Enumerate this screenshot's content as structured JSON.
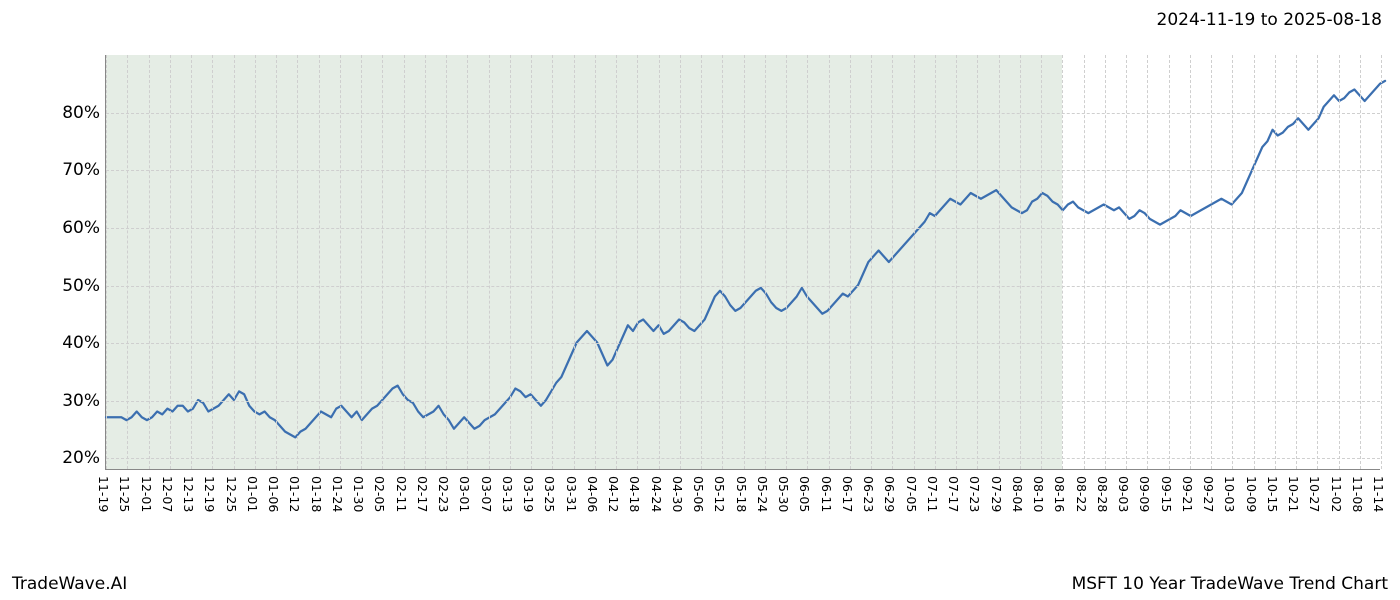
{
  "header": {
    "date_range": "2024-11-19 to 2025-08-18"
  },
  "footer": {
    "left": "TradeWave.AI",
    "right": "MSFT 10 Year TradeWave Trend Chart"
  },
  "chart": {
    "type": "line",
    "background_color": "#ffffff",
    "line_color": "#3b6fb0",
    "line_width": 2.2,
    "grid_color": "#cfcfcf",
    "shade_color": "rgba(150,185,150,0.25)",
    "axis_color": "#888888",
    "ylim": [
      18,
      90
    ],
    "yticks": [
      20,
      30,
      40,
      50,
      60,
      70,
      80
    ],
    "ytick_labels": [
      "20%",
      "30%",
      "40%",
      "50%",
      "60%",
      "70%",
      "80%"
    ],
    "ytick_fontsize": 17,
    "xtick_fontsize": 12.5,
    "xtick_rotation": 90,
    "shade_start": "11-19",
    "shade_end": "08-18",
    "n_points": 250,
    "xticks": [
      "11-19",
      "11-25",
      "12-01",
      "12-07",
      "12-13",
      "12-19",
      "12-25",
      "01-01",
      "01-06",
      "01-12",
      "01-18",
      "01-24",
      "01-30",
      "02-05",
      "02-11",
      "02-17",
      "02-23",
      "03-01",
      "03-07",
      "03-13",
      "03-19",
      "03-25",
      "03-31",
      "04-06",
      "04-12",
      "04-18",
      "04-24",
      "04-30",
      "05-06",
      "05-12",
      "05-18",
      "05-24",
      "05-30",
      "06-05",
      "06-11",
      "06-17",
      "06-23",
      "06-29",
      "07-05",
      "07-11",
      "07-17",
      "07-23",
      "07-29",
      "08-04",
      "08-10",
      "08-16",
      "08-22",
      "08-28",
      "09-03",
      "09-09",
      "09-15",
      "09-21",
      "09-27",
      "10-03",
      "10-09",
      "10-15",
      "10-21",
      "10-27",
      "11-02",
      "11-08",
      "11-14"
    ],
    "values": [
      27,
      27,
      27,
      27,
      26.5,
      27,
      28,
      27,
      26.5,
      27,
      28,
      27.5,
      28.5,
      28,
      29,
      29,
      28,
      28.5,
      30,
      29.5,
      28,
      28.5,
      29,
      30,
      31,
      30,
      31.5,
      31,
      29,
      28,
      27.5,
      28,
      27,
      26.5,
      25.5,
      24.5,
      24,
      23.5,
      24.5,
      25,
      26,
      27,
      28,
      27.5,
      27,
      28.5,
      29,
      28,
      27,
      28,
      26.5,
      27.5,
      28.5,
      29,
      30,
      31,
      32,
      32.5,
      31,
      30,
      29.5,
      28,
      27,
      27.5,
      28,
      29,
      27.5,
      26.5,
      25,
      26,
      27,
      26,
      25,
      25.5,
      26.5,
      27,
      27.5,
      28.5,
      29.5,
      30.5,
      32,
      31.5,
      30.5,
      31,
      30,
      29,
      30,
      31.5,
      33,
      34,
      36,
      38,
      40,
      41,
      42,
      41,
      40,
      38,
      36,
      37,
      39,
      41,
      43,
      42,
      43.5,
      44,
      43,
      42,
      43,
      41.5,
      42,
      43,
      44,
      43.5,
      42.5,
      42,
      43,
      44,
      46,
      48,
      49,
      48,
      46.5,
      45.5,
      46,
      47,
      48,
      49,
      49.5,
      48.5,
      47,
      46,
      45.5,
      46,
      47,
      48,
      49.5,
      48,
      47,
      46,
      45,
      45.5,
      46.5,
      47.5,
      48.5,
      48,
      49,
      50,
      52,
      54,
      55,
      56,
      55,
      54,
      55,
      56,
      57,
      58,
      59,
      60,
      61,
      62.5,
      62,
      63,
      64,
      65,
      64.5,
      64,
      65,
      66,
      65.5,
      65,
      65.5,
      66,
      66.5,
      65.5,
      64.5,
      63.5,
      63,
      62.5,
      63,
      64.5,
      65,
      66,
      65.5,
      64.5,
      64,
      63,
      64,
      64.5,
      63.5,
      63,
      62.5,
      63,
      63.5,
      64,
      63.5,
      63,
      63.5,
      62.5,
      61.5,
      62,
      63,
      62.5,
      61.5,
      61,
      60.5,
      61,
      61.5,
      62,
      63,
      62.5,
      62,
      62.5,
      63,
      63.5,
      64,
      64.5,
      65,
      64.5,
      64,
      65,
      66,
      68,
      70,
      72,
      74,
      75,
      77,
      76,
      76.5,
      77.5,
      78,
      79,
      78,
      77,
      78,
      79,
      81,
      82,
      83,
      82,
      82.5,
      83.5,
      84,
      83,
      82,
      83,
      84,
      85,
      85.5
    ]
  }
}
